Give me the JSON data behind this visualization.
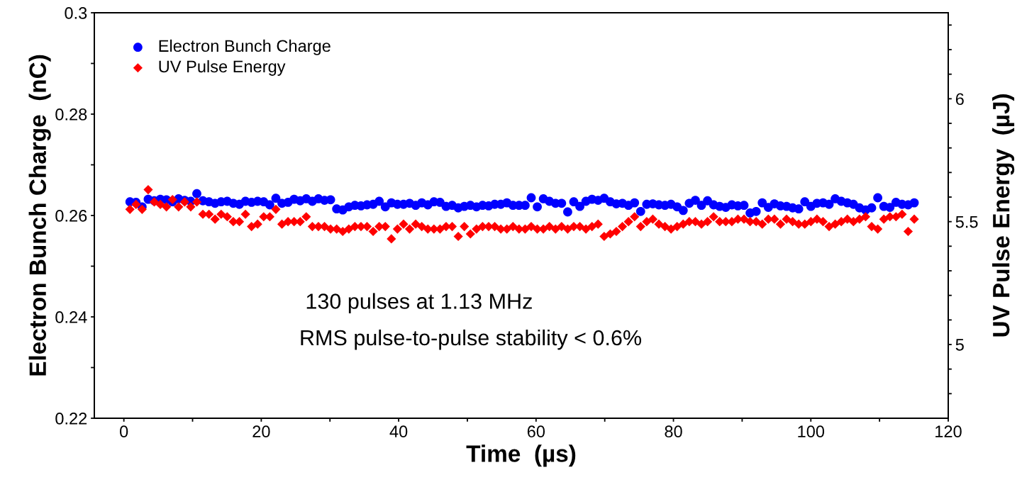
{
  "chart_data": {
    "type": "scatter",
    "xlabel": "Time  (µs)",
    "ylabel": "Electron Bunch Charge  (nC)",
    "y2label": "UV Pulse Energy  (µJ)",
    "xlim": [
      -4.3,
      120
    ],
    "ylim": [
      0.22,
      0.3
    ],
    "y2lim": [
      4.7,
      6.35
    ],
    "xticks": [
      0,
      {
        "value": 10,
        "label": null
      },
      20,
      {
        "value": 30,
        "label": null
      },
      40,
      {
        "value": 50,
        "label": null
      },
      60,
      {
        "value": 70,
        "label": null
      },
      80,
      {
        "value": 90,
        "label": null
      },
      100,
      {
        "value": 110,
        "label": null
      },
      120
    ],
    "yticks": [
      0.22,
      {
        "value": 0.23,
        "label": null
      },
      0.24,
      {
        "value": 0.25,
        "label": null
      },
      0.26,
      {
        "value": 0.27,
        "label": null
      },
      0.28,
      {
        "value": 0.29,
        "label": null
      },
      0.3
    ],
    "y2ticks": [
      {
        "value": 4.8,
        "label": null
      },
      {
        "value": 4.9,
        "label": null
      },
      5,
      {
        "value": 5.1,
        "label": null
      },
      {
        "value": 5.2,
        "label": null
      },
      {
        "value": 5.3,
        "label": null
      },
      {
        "value": 5.4,
        "label": null
      },
      5.5,
      {
        "value": 5.6,
        "label": null
      },
      {
        "value": 5.7,
        "label": null
      },
      {
        "value": 5.8,
        "label": null
      },
      {
        "value": 5.9,
        "label": null
      },
      6,
      {
        "value": 6.1,
        "label": null
      },
      {
        "value": 6.2,
        "label": null
      },
      {
        "value": 6.3,
        "label": null
      }
    ],
    "grid": false,
    "legend": "top left",
    "annotations": [
      "130 pulses at 1.13 MHz",
      "RMS pulse-to-pulse stability < 0.6%"
    ],
    "x": [
      0.885,
      1.77,
      2.655,
      3.54,
      4.425,
      5.31,
      6.195,
      7.08,
      7.965,
      8.85,
      9.735,
      10.62,
      11.505,
      12.39,
      13.275,
      14.16,
      15.045,
      15.93,
      16.815,
      17.7,
      18.585,
      19.47,
      20.355,
      21.24,
      22.125,
      23.01,
      23.895,
      24.78,
      25.665,
      26.55,
      27.435,
      28.32,
      29.205,
      30.09,
      30.975,
      31.86,
      32.745,
      33.63,
      34.515,
      35.4,
      36.285,
      37.17,
      38.055,
      38.94,
      39.825,
      40.71,
      41.595,
      42.48,
      43.365,
      44.25,
      45.135,
      46.02,
      46.905,
      47.79,
      48.675,
      49.56,
      50.445,
      51.33,
      52.215,
      53.1,
      53.985,
      54.87,
      55.755,
      56.64,
      57.525,
      58.41,
      59.295,
      60.18,
      61.065,
      61.95,
      62.835,
      63.72,
      64.605,
      65.49,
      66.375,
      67.26,
      68.145,
      69.03,
      69.915,
      70.8,
      71.685,
      72.57,
      73.455,
      74.34,
      75.225,
      76.11,
      76.995,
      77.88,
      78.765,
      79.65,
      80.535,
      81.42,
      82.305,
      83.19,
      84.075,
      84.96,
      85.845,
      86.73,
      87.615,
      88.5,
      89.385,
      90.27,
      91.155,
      92.04,
      92.925,
      93.81,
      94.695,
      95.58,
      96.465,
      97.35,
      98.235,
      99.12,
      100.005,
      100.89,
      101.775,
      102.66,
      103.545,
      104.43,
      105.315,
      106.2,
      107.085,
      107.97,
      108.855,
      109.74,
      110.625,
      111.51,
      112.395,
      113.28,
      114.165,
      115.05
    ],
    "series": [
      {
        "name": "Electron Bunch Charge",
        "color": "#0000ff",
        "marker": "circle",
        "values": [
          0.2627,
          0.2626,
          0.2617,
          0.2632,
          0.2629,
          0.2632,
          0.2631,
          0.2627,
          0.2633,
          0.263,
          0.2628,
          0.2643,
          0.2629,
          0.2627,
          0.2624,
          0.2627,
          0.2628,
          0.2624,
          0.2622,
          0.2628,
          0.2626,
          0.2628,
          0.2627,
          0.2621,
          0.2634,
          0.2624,
          0.2626,
          0.2632,
          0.2629,
          0.2633,
          0.2628,
          0.2633,
          0.263,
          0.2631,
          0.2613,
          0.2611,
          0.2617,
          0.262,
          0.2619,
          0.2621,
          0.2622,
          0.2628,
          0.2617,
          0.2625,
          0.2622,
          0.2622,
          0.2624,
          0.262,
          0.2625,
          0.2621,
          0.2627,
          0.2626,
          0.2618,
          0.262,
          0.2615,
          0.2618,
          0.262,
          0.2617,
          0.262,
          0.2619,
          0.2622,
          0.2622,
          0.2625,
          0.262,
          0.262,
          0.262,
          0.2635,
          0.2617,
          0.2633,
          0.2628,
          0.2624,
          0.2624,
          0.2607,
          0.2627,
          0.2618,
          0.2628,
          0.2632,
          0.263,
          0.2634,
          0.2627,
          0.2623,
          0.2624,
          0.262,
          0.2625,
          0.2608,
          0.2622,
          0.2623,
          0.2621,
          0.262,
          0.2622,
          0.2617,
          0.261,
          0.2624,
          0.263,
          0.262,
          0.2629,
          0.2621,
          0.2618,
          0.2616,
          0.2621,
          0.2619,
          0.262,
          0.2605,
          0.2608,
          0.2625,
          0.2616,
          0.2623,
          0.2619,
          0.2618,
          0.2615,
          0.2613,
          0.2627,
          0.2618,
          0.2624,
          0.2625,
          0.2622,
          0.2633,
          0.2628,
          0.2625,
          0.2622,
          0.2615,
          0.2611,
          0.2615,
          0.2635,
          0.2618,
          0.2616,
          0.2626,
          0.2622,
          0.2621,
          0.2625
        ]
      },
      {
        "name": "UV Pulse Energy",
        "color": "#ff0000",
        "marker": "diamond",
        "axis": "y2",
        "values": [
          5.55,
          5.57,
          5.55,
          5.63,
          5.58,
          5.57,
          5.56,
          5.59,
          5.56,
          5.58,
          5.56,
          5.58,
          5.53,
          5.53,
          5.51,
          5.53,
          5.52,
          5.5,
          5.5,
          5.53,
          5.48,
          5.49,
          5.52,
          5.52,
          5.55,
          5.49,
          5.5,
          5.5,
          5.5,
          5.52,
          5.48,
          5.48,
          5.48,
          5.47,
          5.47,
          5.46,
          5.47,
          5.48,
          5.48,
          5.48,
          5.46,
          5.48,
          5.48,
          5.43,
          5.47,
          5.49,
          5.47,
          5.49,
          5.48,
          5.47,
          5.47,
          5.47,
          5.48,
          5.48,
          5.44,
          5.48,
          5.45,
          5.47,
          5.48,
          5.48,
          5.48,
          5.47,
          5.47,
          5.48,
          5.47,
          5.47,
          5.48,
          5.47,
          5.47,
          5.48,
          5.47,
          5.48,
          5.47,
          5.48,
          5.48,
          5.47,
          5.48,
          5.49,
          5.44,
          5.45,
          5.46,
          5.48,
          5.5,
          5.52,
          5.48,
          5.5,
          5.51,
          5.49,
          5.48,
          5.47,
          5.48,
          5.49,
          5.5,
          5.5,
          5.49,
          5.5,
          5.52,
          5.5,
          5.5,
          5.5,
          5.51,
          5.51,
          5.5,
          5.5,
          5.49,
          5.51,
          5.51,
          5.49,
          5.51,
          5.5,
          5.49,
          5.49,
          5.5,
          5.51,
          5.5,
          5.48,
          5.49,
          5.5,
          5.51,
          5.5,
          5.51,
          5.52,
          5.48,
          5.47,
          5.51,
          5.52,
          5.52,
          5.53,
          5.46,
          5.51
        ]
      }
    ]
  }
}
